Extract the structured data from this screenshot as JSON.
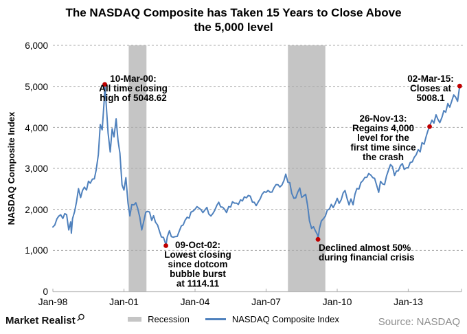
{
  "title": {
    "line1": "The NASDAQ Composite has Taken 15 Years to Close Above",
    "line2": "the 5,000 level",
    "full": "The NASDAQ Composite has Taken 15 Years to Close Above the 5,000 level"
  },
  "axes": {
    "y_label": "NASDAQ Composite Index",
    "y_tick_labels": [
      "0",
      "1,000",
      "2,000",
      "3,000",
      "4,000",
      "5,000",
      "6,000"
    ],
    "x_tick_labels": [
      "Jan-98",
      "Jan-01",
      "Jan-04",
      "Jan-07",
      "Jan-10",
      "Jan-13"
    ]
  },
  "annotations": {
    "ann1": {
      "text": "10-Mar-00:\nAll time closing\nhigh of 5048.62"
    },
    "ann2": {
      "text": "09-Oct-02:\nLowest closing\nsince dotcom\nbubble burst\nat 1114.11"
    },
    "ann3": {
      "text": "Declined almost 50%\nduring financial crisis"
    },
    "ann4": {
      "text": "26-Nov-13:\nRegains 4,000\nlevel for the\nfirst time since\nthe crash"
    },
    "ann5": {
      "text": "02-Mar-15:\nCloses at\n5008.1"
    }
  },
  "legend": {
    "recession_label": "Recession",
    "series_label": "NASDAQ Composite Index"
  },
  "footer": {
    "brand": "Market Realist",
    "source": "Source: NASDAQ"
  },
  "colors": {
    "line": "#4f81bd",
    "marker": "#c00000",
    "recession_band": "#c5c5c5",
    "gridline": "#aaaaaa",
    "axis": "#b7b7b7",
    "source_text": "#8e8e8e"
  },
  "chart_data": {
    "type": "line",
    "title": "The NASDAQ Composite has Taken 15 Years to Close Above the 5,000 level",
    "xlabel": "",
    "ylabel": "NASDAQ Composite Index",
    "ylim": [
      0,
      6000
    ],
    "x_range_years": [
      1998.0,
      2015.45
    ],
    "y_ticks": [
      0,
      1000,
      2000,
      3000,
      4000,
      5000,
      6000
    ],
    "x_tick_years": [
      1998,
      2001,
      2004,
      2007,
      2010,
      2013
    ],
    "grid": "horizontal-dashed",
    "legend_position": "bottom",
    "recessions": [
      {
        "start": 2001.2,
        "end": 2001.95
      },
      {
        "start": 2007.92,
        "end": 2009.5
      }
    ],
    "markers": [
      {
        "t": 2000.19,
        "v": 5048.62,
        "label": "10-Mar-00 all-time closing high"
      },
      {
        "t": 2002.77,
        "v": 1114.11,
        "label": "09-Oct-02 lowest closing since dotcom bubble burst"
      },
      {
        "t": 2009.19,
        "v": 1268.64,
        "label": "financial-crisis low, declined almost 50%"
      },
      {
        "t": 2013.9,
        "v": 4017.75,
        "label": "26-Nov-13 regains 4,000 level"
      },
      {
        "t": 2015.17,
        "v": 5008.1,
        "label": "02-Mar-15 closes at 5008.1"
      }
    ],
    "series": [
      {
        "name": "NASDAQ Composite Index",
        "color": "#4f81bd",
        "points": [
          [
            1998.0,
            1570
          ],
          [
            1998.08,
            1619
          ],
          [
            1998.17,
            1771
          ],
          [
            1998.25,
            1836
          ],
          [
            1998.33,
            1868
          ],
          [
            1998.42,
            1779
          ],
          [
            1998.5,
            1895
          ],
          [
            1998.58,
            1872
          ],
          [
            1998.67,
            1499
          ],
          [
            1998.75,
            1694
          ],
          [
            1998.78,
            1420
          ],
          [
            1998.83,
            1771
          ],
          [
            1998.92,
            1950
          ],
          [
            1999.0,
            2193
          ],
          [
            1999.08,
            2506
          ],
          [
            1999.17,
            2288
          ],
          [
            1999.25,
            2461
          ],
          [
            1999.33,
            2543
          ],
          [
            1999.42,
            2471
          ],
          [
            1999.5,
            2686
          ],
          [
            1999.58,
            2638
          ],
          [
            1999.67,
            2739
          ],
          [
            1999.75,
            2746
          ],
          [
            1999.83,
            2966
          ],
          [
            1999.92,
            3336
          ],
          [
            2000.0,
            4069
          ],
          [
            2000.08,
            3940
          ],
          [
            2000.17,
            4697
          ],
          [
            2000.19,
            5048.62
          ],
          [
            2000.25,
            4573
          ],
          [
            2000.33,
            3861
          ],
          [
            2000.42,
            3401
          ],
          [
            2000.5,
            3966
          ],
          [
            2000.58,
            3767
          ],
          [
            2000.67,
            4206
          ],
          [
            2000.75,
            3673
          ],
          [
            2000.83,
            3370
          ],
          [
            2000.92,
            2598
          ],
          [
            2001.0,
            2471
          ],
          [
            2001.08,
            2773
          ],
          [
            2001.17,
            2152
          ],
          [
            2001.25,
            1840
          ],
          [
            2001.33,
            2116
          ],
          [
            2001.42,
            2110
          ],
          [
            2001.5,
            2161
          ],
          [
            2001.58,
            2027
          ],
          [
            2001.67,
            1805
          ],
          [
            2001.75,
            1498
          ],
          [
            2001.83,
            1690
          ],
          [
            2001.92,
            1930
          ],
          [
            2002.0,
            1950
          ],
          [
            2002.08,
            1934
          ],
          [
            2002.17,
            1731
          ],
          [
            2002.25,
            1845
          ],
          [
            2002.33,
            1688
          ],
          [
            2002.42,
            1616
          ],
          [
            2002.5,
            1463
          ],
          [
            2002.58,
            1328
          ],
          [
            2002.67,
            1315
          ],
          [
            2002.75,
            1172
          ],
          [
            2002.77,
            1114.11
          ],
          [
            2002.83,
            1330
          ],
          [
            2002.92,
            1479
          ],
          [
            2003.0,
            1336
          ],
          [
            2003.08,
            1321
          ],
          [
            2003.17,
            1338
          ],
          [
            2003.25,
            1341
          ],
          [
            2003.33,
            1464
          ],
          [
            2003.42,
            1596
          ],
          [
            2003.5,
            1623
          ],
          [
            2003.58,
            1735
          ],
          [
            2003.67,
            1810
          ],
          [
            2003.75,
            1787
          ],
          [
            2003.83,
            1932
          ],
          [
            2003.92,
            1960
          ],
          [
            2004.0,
            2003
          ],
          [
            2004.08,
            2066
          ],
          [
            2004.17,
            2030
          ],
          [
            2004.25,
            1994
          ],
          [
            2004.33,
            1920
          ],
          [
            2004.42,
            1987
          ],
          [
            2004.5,
            2048
          ],
          [
            2004.58,
            1887
          ],
          [
            2004.67,
            1838
          ],
          [
            2004.75,
            1897
          ],
          [
            2004.83,
            1975
          ],
          [
            2004.92,
            2097
          ],
          [
            2005.0,
            2175
          ],
          [
            2005.08,
            2062
          ],
          [
            2005.17,
            2052
          ],
          [
            2005.25,
            1999
          ],
          [
            2005.33,
            1922
          ],
          [
            2005.42,
            2068
          ],
          [
            2005.5,
            2057
          ],
          [
            2005.58,
            2185
          ],
          [
            2005.67,
            2152
          ],
          [
            2005.75,
            2152
          ],
          [
            2005.83,
            2120
          ],
          [
            2005.92,
            2233
          ],
          [
            2006.0,
            2205
          ],
          [
            2006.08,
            2306
          ],
          [
            2006.17,
            2281
          ],
          [
            2006.25,
            2340
          ],
          [
            2006.33,
            2323
          ],
          [
            2006.42,
            2179
          ],
          [
            2006.5,
            2172
          ],
          [
            2006.58,
            2091
          ],
          [
            2006.67,
            2184
          ],
          [
            2006.75,
            2258
          ],
          [
            2006.83,
            2367
          ],
          [
            2006.92,
            2432
          ],
          [
            2007.0,
            2415
          ],
          [
            2007.08,
            2464
          ],
          [
            2007.17,
            2416
          ],
          [
            2007.25,
            2422
          ],
          [
            2007.33,
            2525
          ],
          [
            2007.42,
            2605
          ],
          [
            2007.5,
            2603
          ],
          [
            2007.58,
            2546
          ],
          [
            2007.67,
            2596
          ],
          [
            2007.75,
            2702
          ],
          [
            2007.83,
            2859
          ],
          [
            2007.92,
            2661
          ],
          [
            2008.0,
            2652
          ],
          [
            2008.08,
            2390
          ],
          [
            2008.17,
            2271
          ],
          [
            2008.25,
            2279
          ],
          [
            2008.33,
            2413
          ],
          [
            2008.42,
            2523
          ],
          [
            2008.5,
            2293
          ],
          [
            2008.58,
            2326
          ],
          [
            2008.67,
            2368
          ],
          [
            2008.75,
            2092
          ],
          [
            2008.83,
            1721
          ],
          [
            2008.92,
            1536
          ],
          [
            2009.0,
            1577
          ],
          [
            2009.08,
            1476
          ],
          [
            2009.17,
            1378
          ],
          [
            2009.19,
            1268.64
          ],
          [
            2009.25,
            1529
          ],
          [
            2009.33,
            1717
          ],
          [
            2009.42,
            1774
          ],
          [
            2009.5,
            1835
          ],
          [
            2009.58,
            1979
          ],
          [
            2009.67,
            2009
          ],
          [
            2009.75,
            2122
          ],
          [
            2009.83,
            2045
          ],
          [
            2009.92,
            2145
          ],
          [
            2010.0,
            2269
          ],
          [
            2010.08,
            2147
          ],
          [
            2010.17,
            2238
          ],
          [
            2010.25,
            2398
          ],
          [
            2010.33,
            2461
          ],
          [
            2010.42,
            2257
          ],
          [
            2010.5,
            2109
          ],
          [
            2010.58,
            2255
          ],
          [
            2010.67,
            2114
          ],
          [
            2010.75,
            2369
          ],
          [
            2010.83,
            2507
          ],
          [
            2010.92,
            2498
          ],
          [
            2011.0,
            2653
          ],
          [
            2011.08,
            2700
          ],
          [
            2011.17,
            2782
          ],
          [
            2011.25,
            2781
          ],
          [
            2011.33,
            2874
          ],
          [
            2011.42,
            2835
          ],
          [
            2011.5,
            2774
          ],
          [
            2011.58,
            2756
          ],
          [
            2011.67,
            2579
          ],
          [
            2011.75,
            2415
          ],
          [
            2011.83,
            2684
          ],
          [
            2011.92,
            2620
          ],
          [
            2012.0,
            2605
          ],
          [
            2012.08,
            2814
          ],
          [
            2012.17,
            2967
          ],
          [
            2012.25,
            3092
          ],
          [
            2012.33,
            3046
          ],
          [
            2012.42,
            2827
          ],
          [
            2012.5,
            2935
          ],
          [
            2012.58,
            2940
          ],
          [
            2012.67,
            3067
          ],
          [
            2012.75,
            3116
          ],
          [
            2012.83,
            2977
          ],
          [
            2012.92,
            3010
          ],
          [
            2013.0,
            3020
          ],
          [
            2013.08,
            3142
          ],
          [
            2013.17,
            3160
          ],
          [
            2013.25,
            3268
          ],
          [
            2013.33,
            3329
          ],
          [
            2013.42,
            3456
          ],
          [
            2013.5,
            3403
          ],
          [
            2013.58,
            3626
          ],
          [
            2013.67,
            3590
          ],
          [
            2013.75,
            3771
          ],
          [
            2013.83,
            3920
          ],
          [
            2013.9,
            4017.75
          ],
          [
            2013.92,
            4060
          ],
          [
            2014.0,
            4177
          ],
          [
            2014.08,
            4104
          ],
          [
            2014.17,
            4308
          ],
          [
            2014.25,
            4199
          ],
          [
            2014.33,
            4115
          ],
          [
            2014.42,
            4243
          ],
          [
            2014.5,
            4408
          ],
          [
            2014.58,
            4370
          ],
          [
            2014.67,
            4580
          ],
          [
            2014.75,
            4493
          ],
          [
            2014.83,
            4631
          ],
          [
            2014.92,
            4792
          ],
          [
            2015.0,
            4736
          ],
          [
            2015.08,
            4635
          ],
          [
            2015.16,
            4964
          ],
          [
            2015.17,
            5008.1
          ]
        ]
      }
    ]
  }
}
